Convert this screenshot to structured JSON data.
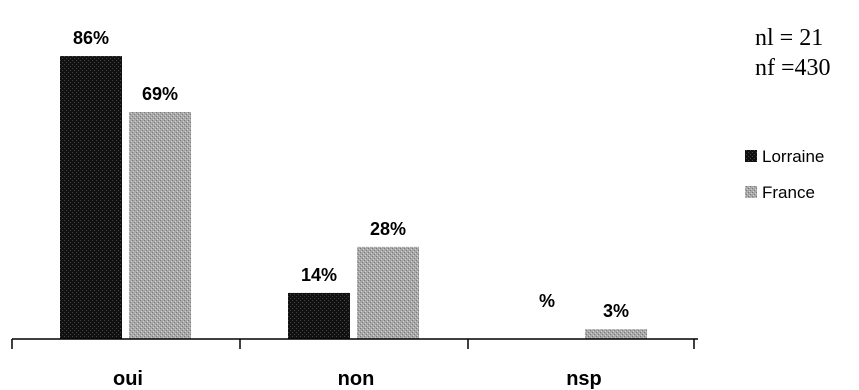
{
  "chart_data": {
    "type": "bar",
    "categories": [
      "oui",
      "non",
      "nsp"
    ],
    "series": [
      {
        "name": "Lorraine",
        "color": "#111111",
        "values": [
          86,
          14,
          null
        ],
        "labels": [
          "86%",
          "14%",
          "%"
        ]
      },
      {
        "name": "France",
        "color": "#a6a6a6",
        "values": [
          69,
          28,
          3
        ],
        "labels": [
          "69%",
          "28%",
          "3%"
        ]
      }
    ],
    "ylim": [
      0,
      100
    ],
    "legend_position": "right",
    "grid": false
  },
  "annotations": {
    "nl": "nl = 21",
    "nf": "nf =430"
  }
}
